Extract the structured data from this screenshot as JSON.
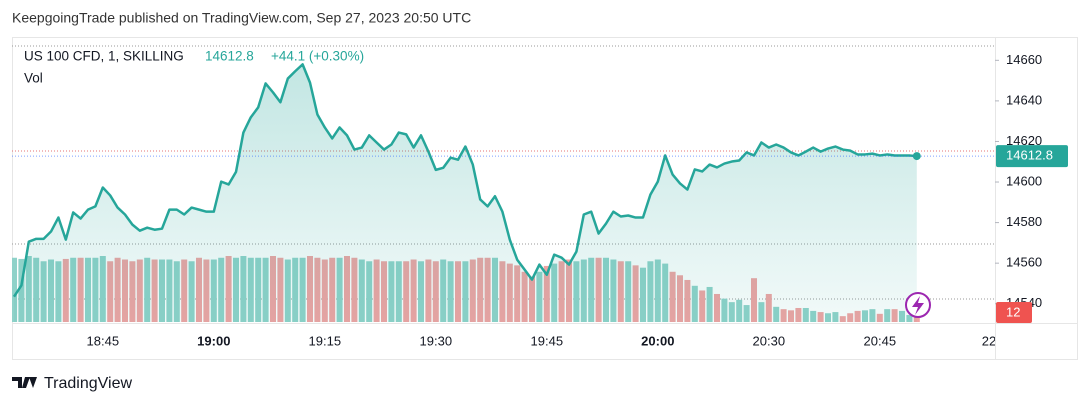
{
  "chart_data": {
    "type": "area",
    "publisher_note": "KeepgoingTrade published on TradingView.com, Sep 27, 2023 20:50 UTC",
    "title": "US 100 CFD, 1, SKILLING",
    "change_label": "+44.1 (+0.30%)",
    "volume_title": "Vol",
    "brand": "TradingView",
    "categories": [
      null,
      null,
      null,
      null,
      null,
      null,
      null,
      null,
      null,
      null,
      null,
      null,
      "18:45",
      null,
      null,
      null,
      null,
      null,
      null,
      null,
      null,
      null,
      null,
      null,
      null,
      null,
      null,
      "19:00",
      null,
      null,
      null,
      null,
      null,
      null,
      null,
      null,
      null,
      null,
      null,
      null,
      null,
      null,
      "19:15",
      null,
      null,
      null,
      null,
      null,
      null,
      null,
      null,
      null,
      null,
      null,
      null,
      null,
      null,
      "19:30",
      null,
      null,
      null,
      null,
      null,
      null,
      null,
      null,
      null,
      null,
      null,
      null,
      null,
      null,
      "19:45",
      null,
      null,
      null,
      null,
      null,
      null,
      null,
      null,
      null,
      null,
      null,
      null,
      null,
      null,
      "20:00",
      null,
      null,
      null,
      null,
      null,
      null,
      null,
      null,
      null,
      null,
      null,
      null,
      null,
      null,
      "20:30",
      null,
      null,
      null,
      null,
      null,
      null,
      null,
      null,
      null,
      null,
      null,
      null,
      null,
      null,
      "20:45",
      null,
      null,
      null,
      null,
      null,
      null,
      null,
      null,
      null,
      null,
      null,
      null,
      null,
      null,
      "22:"
    ],
    "bold_categories": [
      27,
      87
    ],
    "values": [
      14543.5,
      14549,
      14570.6,
      14572,
      14572,
      14575.6,
      14582.5,
      14571.6,
      14585,
      14582,
      14586.4,
      14588,
      14597.3,
      14593.4,
      14587.4,
      14584,
      14579,
      14576,
      14577.5,
      14576.5,
      14577,
      14586.4,
      14586.4,
      14584,
      14587.4,
      14586.4,
      14585.4,
      14585.4,
      14600.2,
      14598.8,
      14605,
      14624.4,
      14631.9,
      14636.8,
      14648.6,
      14644.2,
      14639.3,
      14651,
      14654.6,
      14658,
      14649,
      14633.3,
      14626.9,
      14621.5,
      14626.9,
      14623,
      14616,
      14617,
      14623,
      14619.5,
      14616,
      14618.5,
      14624.4,
      14623.5,
      14617,
      14623,
      14615,
      14606,
      14607,
      14612,
      14611,
      14617.5,
      14608.6,
      14591.4,
      14588,
      14593,
      14585.4,
      14571.6,
      14561.7,
      14556.8,
      14551.9,
      14559.3,
      14554.3,
      14564.2,
      14562.7,
      14559.3,
      14565.7,
      14584,
      14585.4,
      14574.6,
      14579.5,
      14585.4,
      14583,
      14583.5,
      14582.5,
      14582.5,
      14593.8,
      14600.2,
      14613.1,
      14603.7,
      14599.3,
      14596.3,
      14606.2,
      14605.2,
      14608.6,
      14607.2,
      14609.1,
      14610.1,
      14610.6,
      14614.6,
      14613.1,
      14619.5,
      14617,
      14618.5,
      14617,
      14614.6,
      14613.1,
      14615,
      14617,
      14615,
      14616.5,
      14617.5,
      14616,
      14615.5,
      14613.6,
      14613.6,
      14614,
      14613.1,
      14613.6,
      14613.1,
      14613.1,
      14613.1,
      14612.8,
      null,
      null,
      null,
      null,
      null,
      null,
      null,
      null,
      null,
      null
    ],
    "color": "#26a69a",
    "ylim": [
      14531,
      14671
    ],
    "yticks": [
      14540,
      14560,
      14580,
      14600,
      14620,
      14640,
      14660
    ],
    "volume": {
      "values": [
        110,
        108,
        113,
        110,
        104,
        107,
        104,
        108,
        110,
        110,
        110,
        110,
        113,
        104,
        110,
        107,
        104,
        107,
        110,
        107,
        107,
        107,
        104,
        107,
        104,
        110,
        107,
        107,
        110,
        113,
        110,
        113,
        110,
        110,
        110,
        113,
        110,
        107,
        110,
        110,
        113,
        110,
        107,
        110,
        110,
        113,
        110,
        107,
        104,
        107,
        104,
        104,
        104,
        104,
        107,
        104,
        107,
        104,
        107,
        104,
        104,
        104,
        107,
        110,
        110,
        110,
        104,
        100,
        97,
        86,
        78,
        86,
        96,
        100,
        104,
        107,
        104,
        107,
        110,
        110,
        110,
        107,
        104,
        104,
        97,
        93,
        104,
        107,
        100,
        86,
        80,
        72,
        62,
        54,
        60,
        48,
        40,
        34,
        38,
        29,
        75,
        34,
        48,
        26,
        22,
        20,
        24,
        24,
        19,
        17,
        15,
        17,
        10,
        15,
        19,
        20,
        22,
        14,
        22,
        22,
        19,
        12,
        12,
        null,
        null,
        null,
        null,
        null,
        null,
        null,
        null,
        null,
        null
      ],
      "up_color": "#8fd2c9",
      "down_color": "#f0a3a3",
      "ylim": [
        0,
        250
      ]
    }
  }
}
